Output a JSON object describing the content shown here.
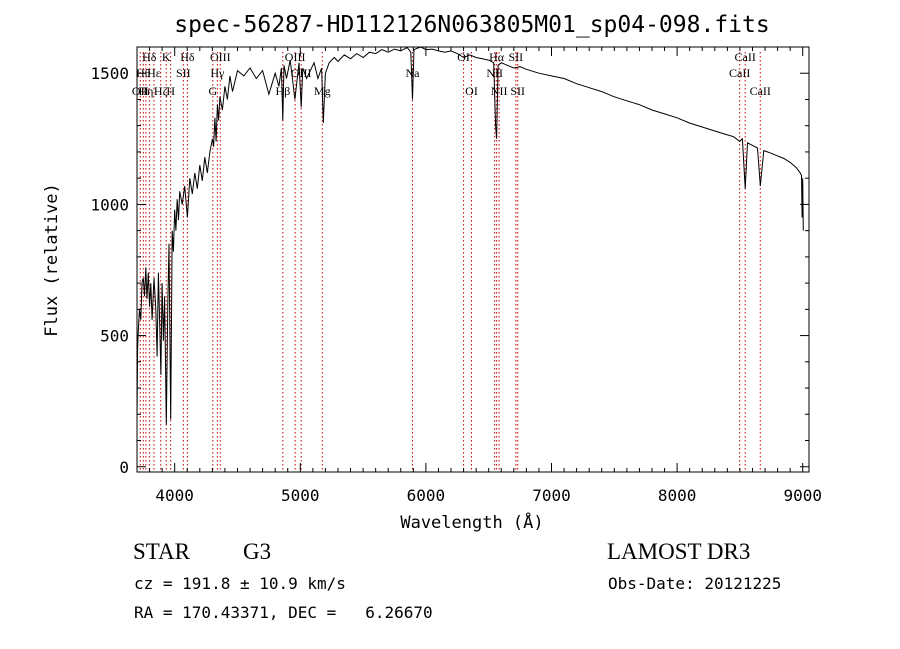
{
  "chart_data": {
    "type": "line",
    "title": "spec-56287-HD112126N063805M01_sp04-098.fits",
    "xlabel": "Wavelength (Å)",
    "ylabel": "Flux (relative)",
    "xlim": [
      3700,
      9050
    ],
    "ylim": [
      -20,
      1600
    ],
    "x_ticks": [
      4000,
      5000,
      6000,
      7000,
      8000,
      9000
    ],
    "y_ticks": [
      0,
      500,
      1000,
      1500
    ],
    "x_tick_labels": [
      "4000",
      "5000",
      "6000",
      "7000",
      "8000",
      "9000"
    ],
    "y_tick_labels": [
      "0",
      "500",
      "1000",
      "1500"
    ],
    "series": [
      {
        "name": "spectrum",
        "x": [
          3700,
          3705,
          3710,
          3720,
          3730,
          3740,
          3750,
          3760,
          3770,
          3780,
          3790,
          3800,
          3810,
          3820,
          3835,
          3850,
          3860,
          3870,
          3880,
          3890,
          3900,
          3910,
          3920,
          3933,
          3945,
          3955,
          3968,
          3980,
          3990,
          4000,
          4010,
          4020,
          4030,
          4040,
          4060,
          4080,
          4101,
          4120,
          4140,
          4160,
          4180,
          4200,
          4220,
          4240,
          4260,
          4280,
          4300,
          4310,
          4320,
          4330,
          4340,
          4350,
          4360,
          4380,
          4400,
          4420,
          4440,
          4460,
          4480,
          4500,
          4550,
          4600,
          4650,
          4700,
          4750,
          4800,
          4830,
          4850,
          4861,
          4870,
          4890,
          4920,
          4957,
          4990,
          5007,
          5020,
          5050,
          5080,
          5110,
          5140,
          5170,
          5183,
          5200,
          5230,
          5270,
          5300,
          5350,
          5400,
          5450,
          5500,
          5550,
          5600,
          5650,
          5700,
          5750,
          5800,
          5850,
          5880,
          5893,
          5905,
          5930,
          5960,
          6000,
          6050,
          6100,
          6150,
          6200,
          6250,
          6300,
          6350,
          6400,
          6450,
          6500,
          6540,
          6555,
          6563,
          6575,
          6600,
          6650,
          6700,
          6750,
          6800,
          6900,
          7000,
          7100,
          7200,
          7300,
          7400,
          7500,
          7600,
          7700,
          7800,
          7900,
          8000,
          8100,
          8200,
          8300,
          8400,
          8450,
          8498,
          8520,
          8542,
          8560,
          8600,
          8640,
          8662,
          8690,
          8750,
          8800,
          8850,
          8900,
          8950,
          8980,
          8990,
          8995,
          9000,
          9005
        ],
        "values": [
          180,
          450,
          520,
          600,
          560,
          700,
          720,
          650,
          760,
          640,
          740,
          610,
          700,
          560,
          720,
          600,
          420,
          740,
          560,
          350,
          700,
          480,
          650,
          160,
          620,
          850,
          180,
          900,
          820,
          980,
          900,
          1020,
          940,
          1050,
          1000,
          1070,
          950,
          1100,
          1040,
          1120,
          1060,
          1150,
          1090,
          1180,
          1120,
          1200,
          1250,
          1220,
          1330,
          1240,
          1380,
          1320,
          1410,
          1360,
          1450,
          1400,
          1490,
          1430,
          1470,
          1510,
          1490,
          1520,
          1480,
          1510,
          1420,
          1500,
          1450,
          1520,
          1320,
          1530,
          1480,
          1550,
          1400,
          1540,
          1370,
          1520,
          1480,
          1510,
          1540,
          1480,
          1520,
          1310,
          1500,
          1540,
          1560,
          1545,
          1570,
          1555,
          1575,
          1560,
          1580,
          1575,
          1590,
          1580,
          1592,
          1585,
          1598,
          1580,
          1400,
          1590,
          1595,
          1600,
          1590,
          1592,
          1585,
          1580,
          1585,
          1575,
          1560,
          1570,
          1560,
          1555,
          1550,
          1540,
          1300,
          1250,
          1530,
          1540,
          1530,
          1520,
          1525,
          1515,
          1500,
          1490,
          1480,
          1460,
          1445,
          1430,
          1410,
          1395,
          1380,
          1360,
          1345,
          1330,
          1310,
          1295,
          1280,
          1265,
          1258,
          1240,
          1250,
          1060,
          1235,
          1225,
          1215,
          1070,
          1205,
          1195,
          1185,
          1175,
          1160,
          1140,
          1120,
          1110,
          950,
          1100,
          900
        ]
      }
    ],
    "line_color": "#000000",
    "marker_color": "#cc0000",
    "line_markers": [
      {
        "wl": 3726,
        "label": "OII",
        "row": 3
      },
      {
        "wl": 3750,
        "label": "Hθ",
        "row": 2
      },
      {
        "wl": 3771,
        "label": "Hη",
        "row": 3
      },
      {
        "wl": 3798,
        "label": "Hδ",
        "row": 1
      },
      {
        "wl": 3835,
        "label": "Hε",
        "row": 2
      },
      {
        "wl": 3889,
        "label": "Hζ",
        "row": 3
      },
      {
        "wl": 3933,
        "label": "K",
        "row": 1
      },
      {
        "wl": 3968,
        "label": "H",
        "row": 3
      },
      {
        "wl": 4069,
        "label": "SII",
        "row": 2
      },
      {
        "wl": 4101,
        "label": "Hδ",
        "row": 1
      },
      {
        "wl": 4340,
        "label": "Hγ",
        "row": 2
      },
      {
        "wl": 4363,
        "label": "OIII",
        "row": 1
      },
      {
        "wl": 4304,
        "label": "G",
        "row": 3
      },
      {
        "wl": 4861,
        "label": "Hβ",
        "row": 3
      },
      {
        "wl": 4959,
        "label": "OIII",
        "row": 1
      },
      {
        "wl": 5007,
        "label": "OIII",
        "row": 2
      },
      {
        "wl": 5175,
        "label": "Mg",
        "row": 3
      },
      {
        "wl": 5893,
        "label": "Na",
        "row": 2
      },
      {
        "wl": 6300,
        "label": "OI",
        "row": 1
      },
      {
        "wl": 6363,
        "label": "OI",
        "row": 3
      },
      {
        "wl": 6548,
        "label": "NII",
        "row": 2
      },
      {
        "wl": 6563,
        "label": "Hα",
        "row": 1
      },
      {
        "wl": 6583,
        "label": "NII",
        "row": 3
      },
      {
        "wl": 6716,
        "label": "SII",
        "row": 1
      },
      {
        "wl": 6731,
        "label": "SII",
        "row": 3
      },
      {
        "wl": 8498,
        "label": "CaII",
        "row": 2
      },
      {
        "wl": 8542,
        "label": "CaII",
        "row": 1
      },
      {
        "wl": 8662,
        "label": "CaII",
        "row": 3
      }
    ]
  },
  "info": {
    "class_label": "STAR",
    "subclass": "G3",
    "survey": "LAMOST DR3",
    "cz": "cz = 191.8 ± 10.9 km/s",
    "obs_date": "Obs-Date: 20121225",
    "coords": "RA = 170.43371, DEC =   6.26670"
  }
}
